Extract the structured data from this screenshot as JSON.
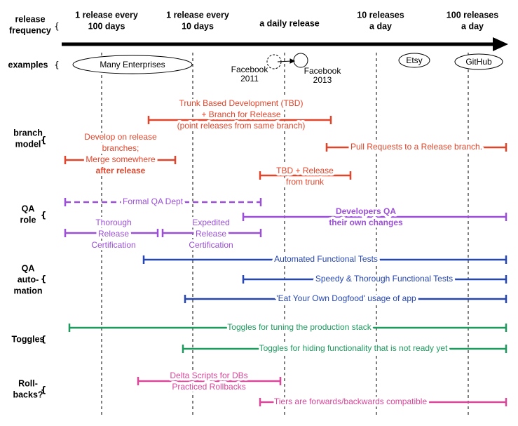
{
  "frequency_label": [
    "release",
    "frequency"
  ],
  "columns": [
    [
      "1 release every",
      "100 days"
    ],
    [
      "1 release every",
      "10 days"
    ],
    [
      "a daily release"
    ],
    [
      "10 releases",
      "a day"
    ],
    [
      "100 releases",
      "a day"
    ]
  ],
  "rows": [
    [
      "examples"
    ],
    [
      "branch",
      "model"
    ],
    [
      "QA",
      "role"
    ],
    [
      "QA",
      "auto-",
      "mation"
    ],
    [
      "Toggles"
    ],
    [
      "Roll-",
      "backs?"
    ]
  ],
  "examples": [
    [
      "Many Enterprises"
    ],
    [
      "Facebook",
      "2011"
    ],
    [
      "Facebook",
      "2013"
    ],
    [
      "Etsy"
    ],
    [
      "GitHub"
    ]
  ],
  "lanes": [
    {
      "color": "#e0452b",
      "bars": [
        [
          "Trunk Based Development (TBD)",
          "+ Branch for Release",
          "(point releases from same branch)"
        ],
        [
          "Develop on release",
          "branches;",
          "Merge somewhere",
          "after release"
        ],
        [
          "Pull Requests to a Release branch."
        ],
        [
          "TBD + Release",
          "from trunk"
        ]
      ]
    },
    {
      "color": "#9b4fd6",
      "bars": [
        [
          "Formal QA Dept"
        ],
        [
          "Developers QA",
          "their own changes"
        ],
        [
          "Thorough",
          "Release",
          "Certification"
        ],
        [
          "Expedited",
          "Release",
          "Certification"
        ]
      ]
    },
    {
      "color": "#2646b0",
      "bars": [
        [
          "Automated Functional Tests"
        ],
        [
          "Speedy & Thorough Functional Tests"
        ],
        [
          "'Eat Your Own Dogfood' usage of app"
        ]
      ]
    },
    {
      "color": "#1f9a5f",
      "bars": [
        [
          "Toggles for tuning the production stack"
        ],
        [
          "Toggles for hiding functionality that is not ready yet"
        ]
      ]
    },
    {
      "color": "#d9469a",
      "bars": [
        [
          "Delta Scripts for DBs",
          "Practiced Rollbacks"
        ],
        [
          "Tiers are forwards/backwards compatible"
        ]
      ]
    }
  ]
}
